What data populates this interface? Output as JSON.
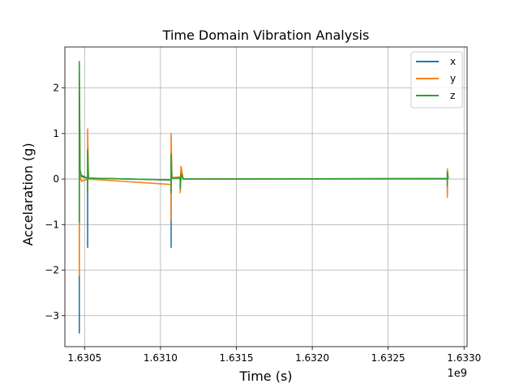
{
  "chart_data": {
    "type": "line",
    "title": "Time Domain Vibration Analysis",
    "xlabel": "Time (s)",
    "ylabel": "Accelaration (g)",
    "x_offset_label": "1e9",
    "x_multiplier": 1000000000,
    "xlim": [
      1.63037,
      1.63302
    ],
    "ylim": [
      -3.68,
      2.9
    ],
    "x_ticks": [
      1.6305,
      1.631,
      1.6315,
      1.632,
      1.6325,
      1.633
    ],
    "x_tick_labels": [
      "1.6305",
      "1.6310",
      "1.6315",
      "1.6320",
      "1.6325",
      "1.6330"
    ],
    "y_ticks": [
      2,
      1,
      0,
      -1,
      -2,
      -3
    ],
    "y_tick_labels": [
      "2",
      "1",
      "0",
      "−1",
      "−2",
      "−3"
    ],
    "grid": true,
    "legend_position": "top-right",
    "series": [
      {
        "name": "x",
        "color": "#1f77b4",
        "points": [
          [
            1.630465,
            0.0
          ],
          [
            1.630465,
            -3.38
          ],
          [
            1.630465,
            0.1
          ],
          [
            1.63047,
            0.15
          ],
          [
            1.63048,
            0.08
          ],
          [
            1.63052,
            0.02
          ],
          [
            1.63052,
            -1.5
          ],
          [
            1.63052,
            0.55
          ],
          [
            1.630525,
            0.02
          ],
          [
            1.63107,
            -0.02
          ],
          [
            1.63107,
            -1.5
          ],
          [
            1.63107,
            0.5
          ],
          [
            1.631075,
            0.02
          ],
          [
            1.63113,
            0.03
          ],
          [
            1.63113,
            -0.25
          ],
          [
            1.631135,
            0.1
          ],
          [
            1.63115,
            0.0
          ],
          [
            1.63289,
            0.01
          ],
          [
            1.63289,
            -0.3
          ],
          [
            1.63289,
            0.2
          ],
          [
            1.632895,
            0.01
          ]
        ]
      },
      {
        "name": "y",
        "color": "#ff7f0e",
        "points": [
          [
            1.630465,
            0.0
          ],
          [
            1.630465,
            -2.12
          ],
          [
            1.630465,
            2.3
          ],
          [
            1.63047,
            0.05
          ],
          [
            1.63048,
            -0.05
          ],
          [
            1.63052,
            0.0
          ],
          [
            1.63052,
            -0.3
          ],
          [
            1.63052,
            1.1
          ],
          [
            1.630525,
            0.0
          ],
          [
            1.63107,
            -0.12
          ],
          [
            1.63107,
            -0.9
          ],
          [
            1.63107,
            1.0
          ],
          [
            1.631075,
            0.03
          ],
          [
            1.63113,
            0.05
          ],
          [
            1.63113,
            -0.3
          ],
          [
            1.631135,
            0.28
          ],
          [
            1.63115,
            0.0
          ],
          [
            1.63289,
            0.0
          ],
          [
            1.63289,
            -0.4
          ],
          [
            1.63289,
            0.22
          ],
          [
            1.632895,
            0.0
          ]
        ]
      },
      {
        "name": "z",
        "color": "#2ca02c",
        "points": [
          [
            1.630465,
            0.0
          ],
          [
            1.630465,
            -0.95
          ],
          [
            1.630465,
            2.58
          ],
          [
            1.63047,
            0.2
          ],
          [
            1.63048,
            0.05
          ],
          [
            1.63052,
            0.02
          ],
          [
            1.63052,
            -0.3
          ],
          [
            1.63052,
            0.65
          ],
          [
            1.630525,
            0.02
          ],
          [
            1.63107,
            -0.02
          ],
          [
            1.63107,
            -0.3
          ],
          [
            1.63107,
            0.55
          ],
          [
            1.631075,
            0.02
          ],
          [
            1.63113,
            0.02
          ],
          [
            1.63113,
            -0.2
          ],
          [
            1.631135,
            0.12
          ],
          [
            1.63115,
            0.0
          ],
          [
            1.63289,
            0.01
          ],
          [
            1.63289,
            -0.15
          ],
          [
            1.63289,
            0.15
          ],
          [
            1.632895,
            0.01
          ]
        ]
      }
    ]
  }
}
